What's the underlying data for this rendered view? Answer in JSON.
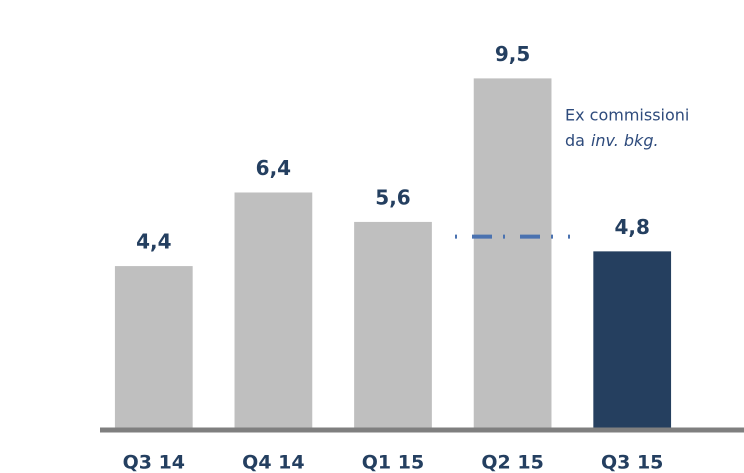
{
  "chart_data": {
    "type": "bar",
    "categories": [
      "Q3 14",
      "Q4 14",
      "Q1 15",
      "Q2 15",
      "Q3 15"
    ],
    "values": [
      4.4,
      6.4,
      5.6,
      9.5,
      4.8
    ],
    "value_labels": [
      "4,4",
      "6,4",
      "5,6",
      "9,5",
      "4,8"
    ],
    "colors": [
      "#bfbfbf",
      "#bfbfbf",
      "#bfbfbf",
      "#bfbfbf",
      "#253f5f"
    ],
    "reference_line": {
      "value": 5.2,
      "color": "#4a72b0"
    },
    "annotation": {
      "line1": "Ex commissioni",
      "line2": "da",
      "line2_italic": "inv. bkg."
    }
  }
}
